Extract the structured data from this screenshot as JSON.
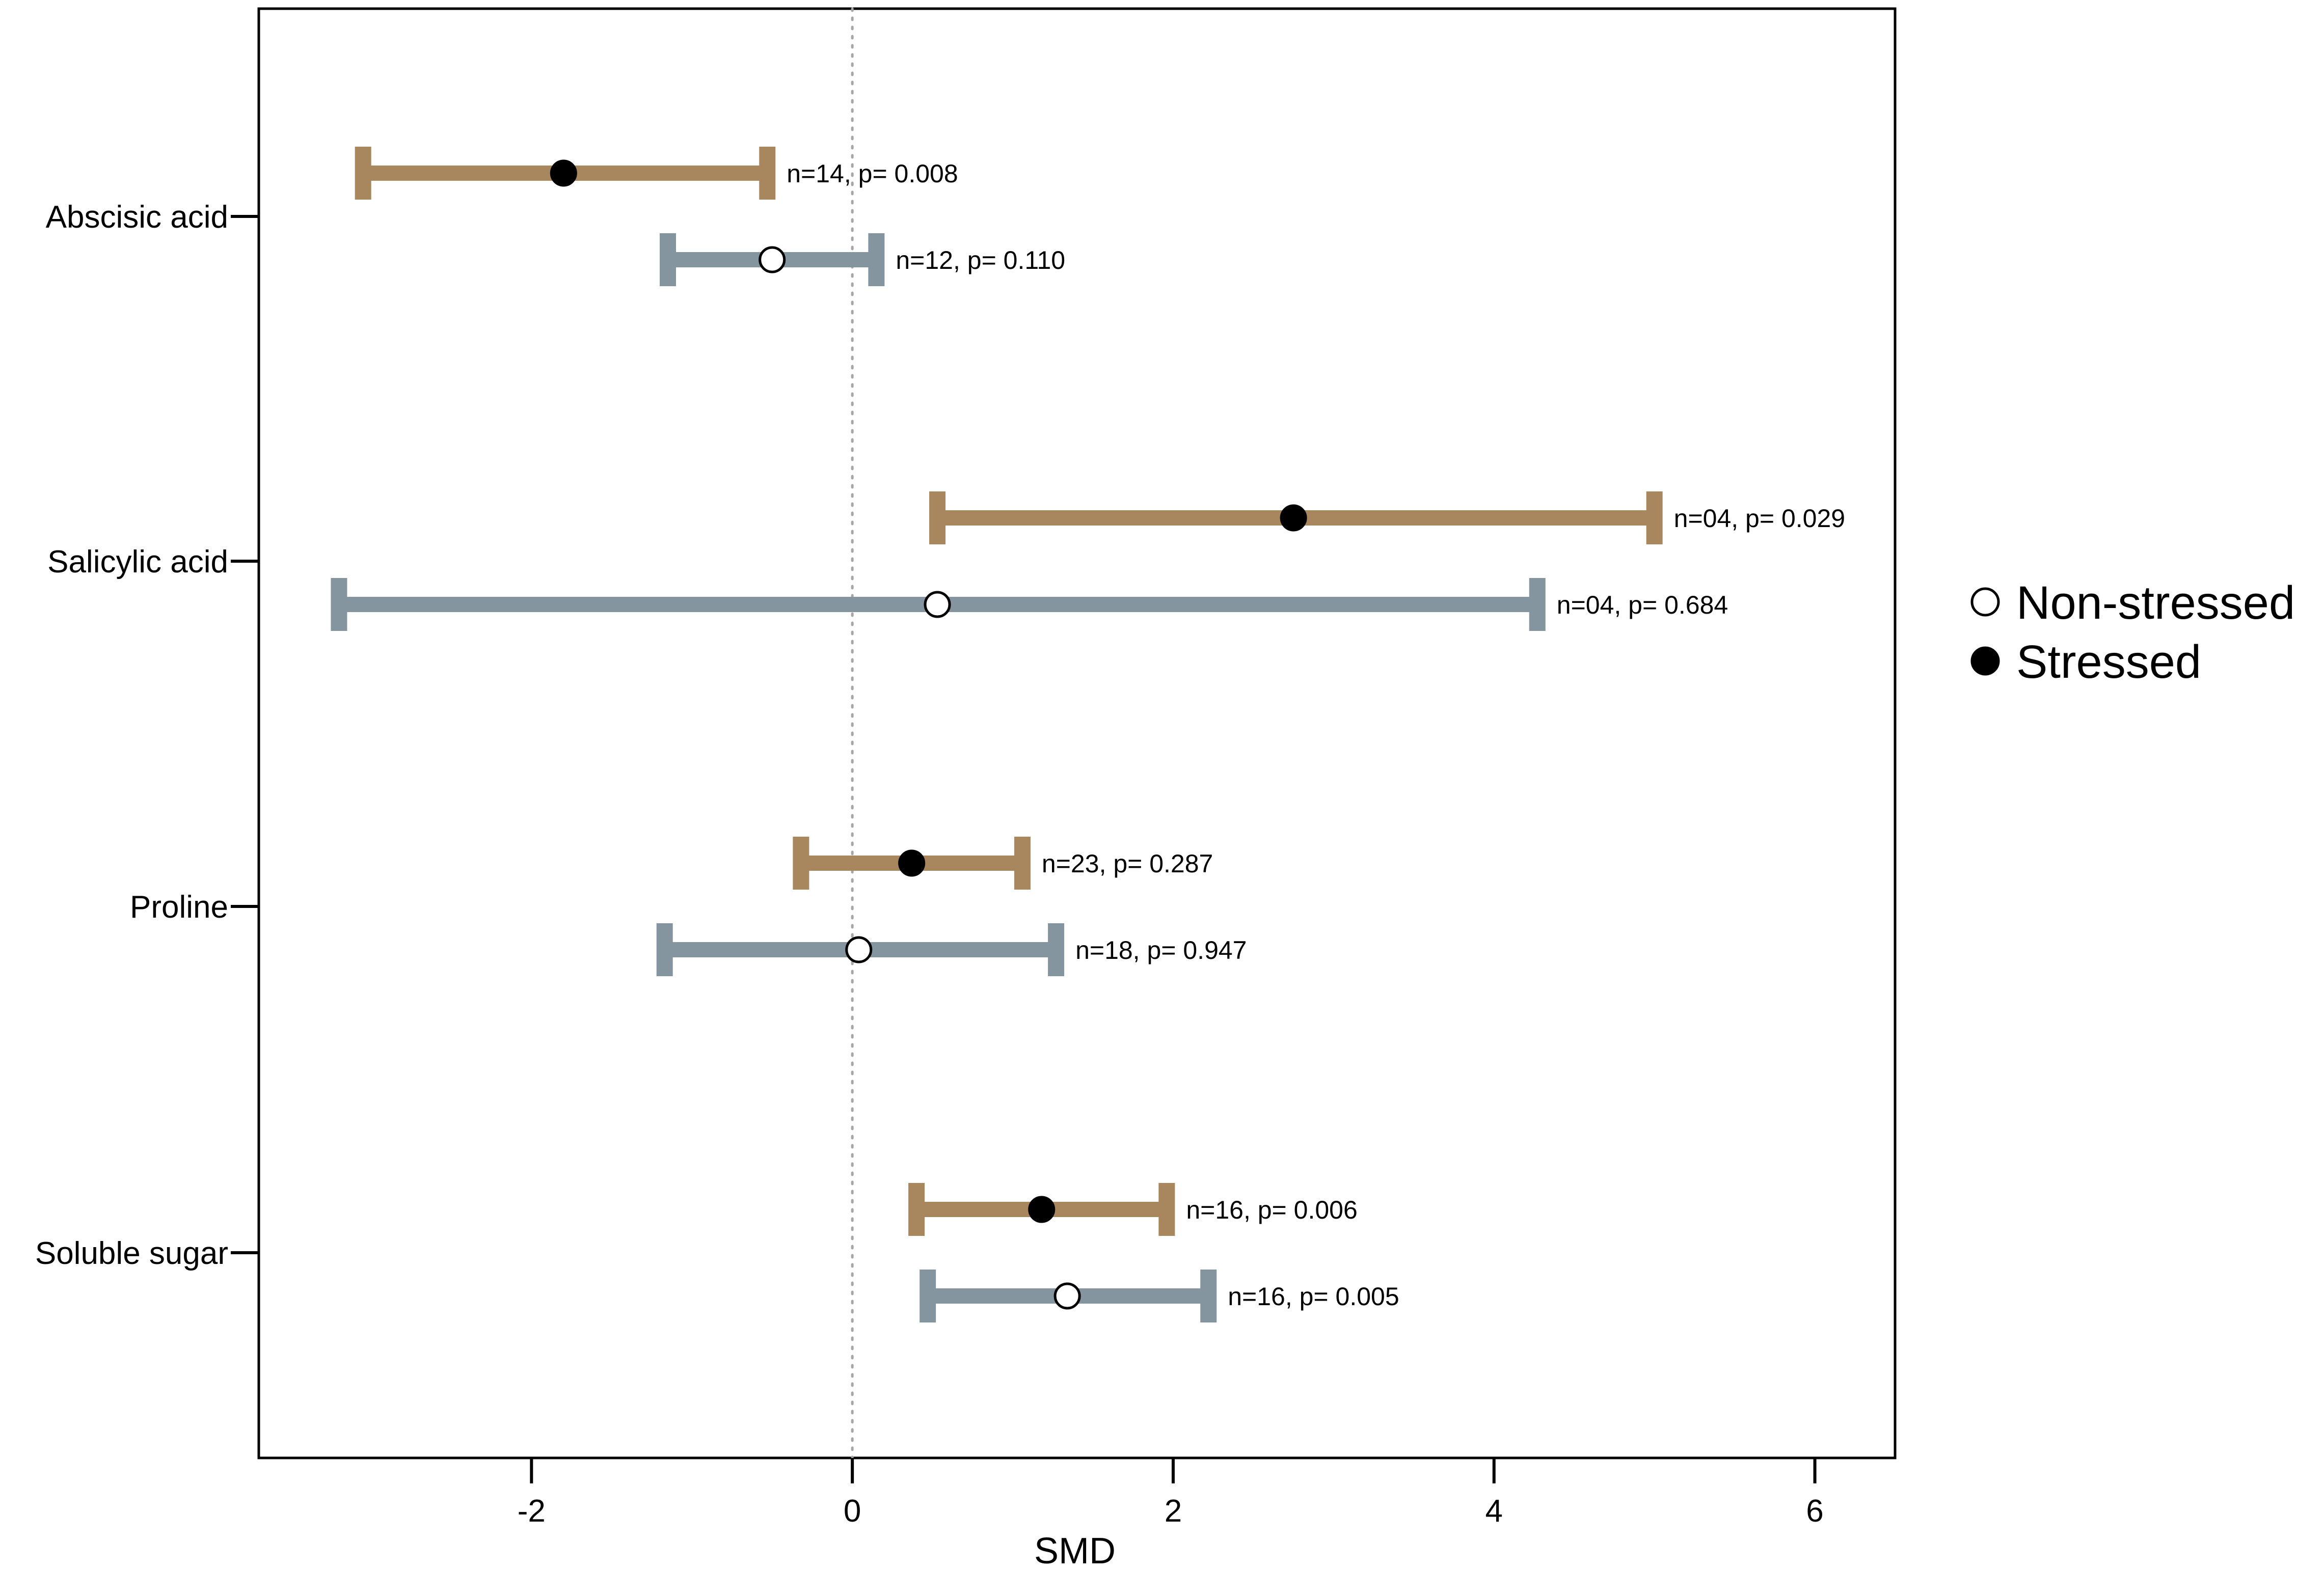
{
  "chart_data": {
    "type": "forest",
    "xlabel": "SMD",
    "xlim": [
      -3.7,
      6.5
    ],
    "xticks": [
      -2,
      0,
      2,
      4,
      6
    ],
    "xtick_labels": [
      "-2",
      "0",
      "2",
      "4",
      "6"
    ],
    "reference_line_x": 0,
    "categories": [
      "Abscisic acid",
      "Salicylic acid",
      "Proline",
      "Soluble sugar"
    ],
    "series": [
      {
        "name": "Stressed",
        "color": "#A8875E",
        "marker": "filled-circle",
        "points": [
          {
            "category": "Abscisic acid",
            "estimate": -1.8,
            "ci_low": -3.05,
            "ci_high": -0.53,
            "annotation": "n=14, p= 0.008"
          },
          {
            "category": "Salicylic acid",
            "estimate": 2.75,
            "ci_low": 0.53,
            "ci_high": 5.0,
            "annotation": "n=04, p= 0.029"
          },
          {
            "category": "Proline",
            "estimate": 0.37,
            "ci_low": -0.32,
            "ci_high": 1.06,
            "annotation": "n=23, p= 0.287"
          },
          {
            "category": "Soluble sugar",
            "estimate": 1.18,
            "ci_low": 0.4,
            "ci_high": 1.96,
            "annotation": "n=16, p= 0.006"
          }
        ]
      },
      {
        "name": "Non-stressed",
        "color": "#8595A0",
        "marker": "open-circle",
        "points": [
          {
            "category": "Abscisic acid",
            "estimate": -0.5,
            "ci_low": -1.15,
            "ci_high": 0.15,
            "annotation": "n=12, p= 0.110"
          },
          {
            "category": "Salicylic acid",
            "estimate": 0.53,
            "ci_low": -3.2,
            "ci_high": 4.27,
            "annotation": "n=04, p= 0.684"
          },
          {
            "category": "Proline",
            "estimate": 0.04,
            "ci_low": -1.17,
            "ci_high": 1.27,
            "annotation": "n=18, p= 0.947"
          },
          {
            "category": "Soluble sugar",
            "estimate": 1.34,
            "ci_low": 0.47,
            "ci_high": 2.22,
            "annotation": "n=16, p= 0.005"
          }
        ]
      }
    ],
    "legend": {
      "placement": "right",
      "entries": [
        {
          "label": "Non-stressed",
          "marker": "open-circle"
        },
        {
          "label": "Stressed",
          "marker": "filled-circle"
        }
      ]
    },
    "grid": false
  }
}
